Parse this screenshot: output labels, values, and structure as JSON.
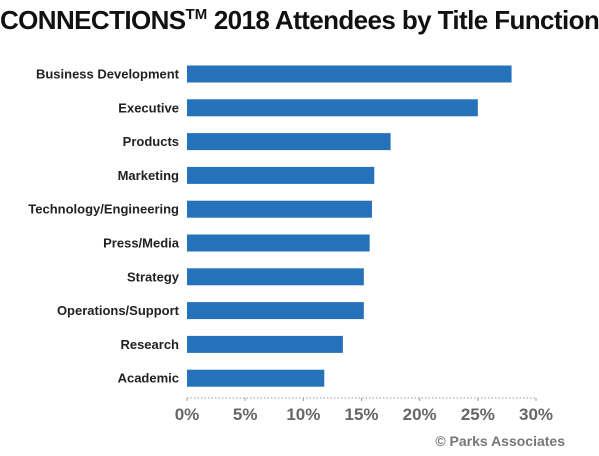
{
  "title": {
    "main": "CONNECTIONS",
    "superscript": "TM",
    "rest": " 2018 Attendees by Title Function"
  },
  "credit": "© Parks Associates",
  "colors": {
    "bar": "#2672BA",
    "axis": "#999999",
    "title": "#111111",
    "tick_label": "#666666"
  },
  "chart_data": {
    "type": "bar",
    "orientation": "horizontal",
    "title": "CONNECTIONS™ 2018 Attendees by Title Function",
    "categories": [
      "Business Development",
      "Executive",
      "Products",
      "Marketing",
      "Technology/Engineering",
      "Press/Media",
      "Strategy",
      "Operations/Support",
      "Research",
      "Academic"
    ],
    "values": [
      27.9,
      25.0,
      17.5,
      16.1,
      15.9,
      15.7,
      15.2,
      15.2,
      13.4,
      11.8
    ],
    "unit": "%",
    "xlim": [
      0,
      30
    ],
    "xticks": [
      0,
      5,
      10,
      15,
      20,
      25,
      30
    ],
    "xtick_labels": [
      "0%",
      "5%",
      "10%",
      "15%",
      "20%",
      "25%",
      "30%"
    ],
    "grid": false,
    "legend": "none",
    "xlabel": "",
    "ylabel": ""
  }
}
